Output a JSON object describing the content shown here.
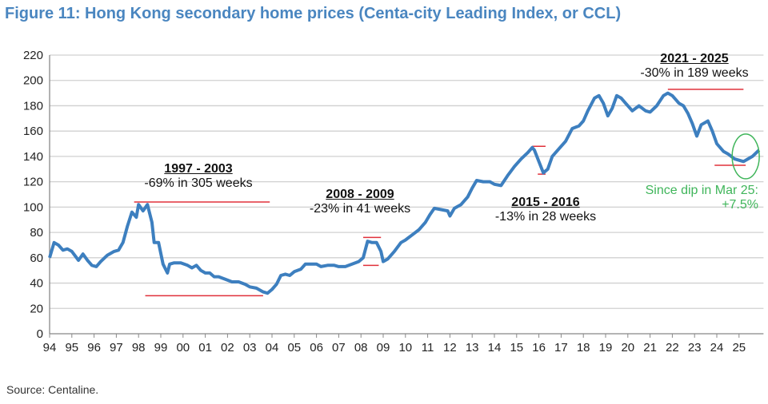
{
  "title": "Figure 11: Hong Kong secondary home prices (Centa-city Leading Index, or CCL)",
  "source": "Source: Centaline.",
  "chart_data": {
    "type": "line",
    "title": "Figure 11: Hong Kong secondary home prices (Centa-city Leading Index, or CCL)",
    "xlabel": "",
    "ylabel": "",
    "ylim": [
      0,
      220
    ],
    "yticks": [
      0,
      20,
      40,
      60,
      80,
      100,
      120,
      140,
      160,
      180,
      200,
      220
    ],
    "xlim": [
      1994,
      2026
    ],
    "xticks": [
      "94",
      "95",
      "96",
      "97",
      "98",
      "99",
      "00",
      "01",
      "02",
      "03",
      "04",
      "05",
      "06",
      "07",
      "08",
      "09",
      "10",
      "11",
      "12",
      "13",
      "14",
      "15",
      "16",
      "17",
      "18",
      "19",
      "20",
      "21",
      "22",
      "23",
      "24",
      "25"
    ],
    "grid": true,
    "line_color": "#3d7fbf",
    "series": [
      {
        "name": "CCL",
        "points": [
          [
            1994.0,
            60
          ],
          [
            1994.2,
            72
          ],
          [
            1994.4,
            70
          ],
          [
            1994.6,
            66
          ],
          [
            1994.8,
            67
          ],
          [
            1995.0,
            65
          ],
          [
            1995.3,
            58
          ],
          [
            1995.5,
            63
          ],
          [
            1995.7,
            58
          ],
          [
            1995.9,
            54
          ],
          [
            1996.1,
            53
          ],
          [
            1996.3,
            57
          ],
          [
            1996.6,
            62
          ],
          [
            1996.9,
            65
          ],
          [
            1997.1,
            66
          ],
          [
            1997.3,
            72
          ],
          [
            1997.5,
            85
          ],
          [
            1997.7,
            96
          ],
          [
            1997.9,
            92
          ],
          [
            1998.0,
            102
          ],
          [
            1998.2,
            97
          ],
          [
            1998.4,
            102
          ],
          [
            1998.6,
            88
          ],
          [
            1998.7,
            72
          ],
          [
            1998.9,
            72
          ],
          [
            1999.1,
            55
          ],
          [
            1999.3,
            48
          ],
          [
            1999.4,
            55
          ],
          [
            1999.6,
            56
          ],
          [
            1999.9,
            56
          ],
          [
            2000.2,
            54
          ],
          [
            2000.4,
            52
          ],
          [
            2000.6,
            54
          ],
          [
            2000.8,
            50
          ],
          [
            2001.0,
            48
          ],
          [
            2001.2,
            48
          ],
          [
            2001.4,
            45
          ],
          [
            2001.6,
            45
          ],
          [
            2001.9,
            43
          ],
          [
            2002.2,
            41
          ],
          [
            2002.5,
            41
          ],
          [
            2002.8,
            39
          ],
          [
            2003.0,
            37
          ],
          [
            2003.3,
            36
          ],
          [
            2003.6,
            33
          ],
          [
            2003.8,
            32
          ],
          [
            2004.0,
            35
          ],
          [
            2004.2,
            39
          ],
          [
            2004.4,
            46
          ],
          [
            2004.6,
            47
          ],
          [
            2004.8,
            46
          ],
          [
            2005.0,
            49
          ],
          [
            2005.3,
            51
          ],
          [
            2005.5,
            55
          ],
          [
            2005.8,
            55
          ],
          [
            2006.0,
            55
          ],
          [
            2006.2,
            53
          ],
          [
            2006.5,
            54
          ],
          [
            2006.8,
            54
          ],
          [
            2007.0,
            53
          ],
          [
            2007.3,
            53
          ],
          [
            2007.6,
            55
          ],
          [
            2007.9,
            57
          ],
          [
            2008.1,
            60
          ],
          [
            2008.3,
            73
          ],
          [
            2008.5,
            72
          ],
          [
            2008.7,
            72
          ],
          [
            2008.9,
            65
          ],
          [
            2009.0,
            57
          ],
          [
            2009.2,
            59
          ],
          [
            2009.5,
            65
          ],
          [
            2009.8,
            72
          ],
          [
            2010.0,
            74
          ],
          [
            2010.3,
            78
          ],
          [
            2010.6,
            82
          ],
          [
            2010.9,
            88
          ],
          [
            2011.1,
            94
          ],
          [
            2011.3,
            99
          ],
          [
            2011.6,
            98
          ],
          [
            2011.9,
            97
          ],
          [
            2012.0,
            93
          ],
          [
            2012.2,
            99
          ],
          [
            2012.5,
            102
          ],
          [
            2012.8,
            108
          ],
          [
            2013.0,
            115
          ],
          [
            2013.2,
            121
          ],
          [
            2013.5,
            120
          ],
          [
            2013.8,
            120
          ],
          [
            2014.0,
            118
          ],
          [
            2014.3,
            117
          ],
          [
            2014.6,
            125
          ],
          [
            2014.9,
            132
          ],
          [
            2015.2,
            138
          ],
          [
            2015.5,
            143
          ],
          [
            2015.7,
            147
          ],
          [
            2015.8,
            145
          ],
          [
            2016.0,
            136
          ],
          [
            2016.2,
            127
          ],
          [
            2016.4,
            130
          ],
          [
            2016.6,
            140
          ],
          [
            2016.9,
            146
          ],
          [
            2017.2,
            152
          ],
          [
            2017.5,
            162
          ],
          [
            2017.8,
            164
          ],
          [
            2018.0,
            168
          ],
          [
            2018.2,
            176
          ],
          [
            2018.5,
            186
          ],
          [
            2018.7,
            188
          ],
          [
            2018.9,
            182
          ],
          [
            2019.1,
            172
          ],
          [
            2019.3,
            178
          ],
          [
            2019.5,
            188
          ],
          [
            2019.7,
            186
          ],
          [
            2019.9,
            182
          ],
          [
            2020.2,
            176
          ],
          [
            2020.5,
            180
          ],
          [
            2020.8,
            176
          ],
          [
            2021.0,
            175
          ],
          [
            2021.3,
            180
          ],
          [
            2021.6,
            188
          ],
          [
            2021.8,
            190
          ],
          [
            2022.0,
            188
          ],
          [
            2022.3,
            182
          ],
          [
            2022.5,
            180
          ],
          [
            2022.7,
            174
          ],
          [
            2022.9,
            166
          ],
          [
            2023.1,
            156
          ],
          [
            2023.3,
            165
          ],
          [
            2023.6,
            168
          ],
          [
            2023.8,
            160
          ],
          [
            2024.0,
            150
          ],
          [
            2024.3,
            144
          ],
          [
            2024.5,
            142
          ],
          [
            2024.8,
            138
          ],
          [
            2025.0,
            137
          ],
          [
            2025.2,
            136
          ],
          [
            2025.4,
            138
          ],
          [
            2025.6,
            140
          ],
          [
            2025.9,
            145
          ]
        ]
      }
    ],
    "reference_lines": [
      {
        "value": 104,
        "from": 1997.8,
        "to": 2003.9
      },
      {
        "value": 30,
        "from": 1998.3,
        "to": 2003.6
      },
      {
        "value": 76,
        "from": 2008.1,
        "to": 2008.9
      },
      {
        "value": 54,
        "from": 2008.1,
        "to": 2008.8
      },
      {
        "value": 148,
        "from": 2015.7,
        "to": 2016.3
      },
      {
        "value": 126,
        "from": 2015.95,
        "to": 2016.3
      },
      {
        "value": 193,
        "from": 2021.8,
        "to": 2025.2
      },
      {
        "value": 133,
        "from": 2023.9,
        "to": 2025.3
      }
    ],
    "ref_color": "#e0303a",
    "highlight": {
      "x": 2025.3,
      "y": 140,
      "color": "#3fb55a"
    },
    "annotations": [
      {
        "heading": "1997 - 2003",
        "text": "-69% in 305 weeks"
      },
      {
        "heading": "2008 - 2009",
        "text": "-23% in 41 weeks"
      },
      {
        "heading": "2015 - 2016",
        "text": "-13% in 28 weeks"
      },
      {
        "heading": "2021 - 2025",
        "text": "-30% in 189 weeks"
      },
      {
        "line1": "Since dip in Mar 25:",
        "line2": "+7.5%"
      }
    ]
  }
}
